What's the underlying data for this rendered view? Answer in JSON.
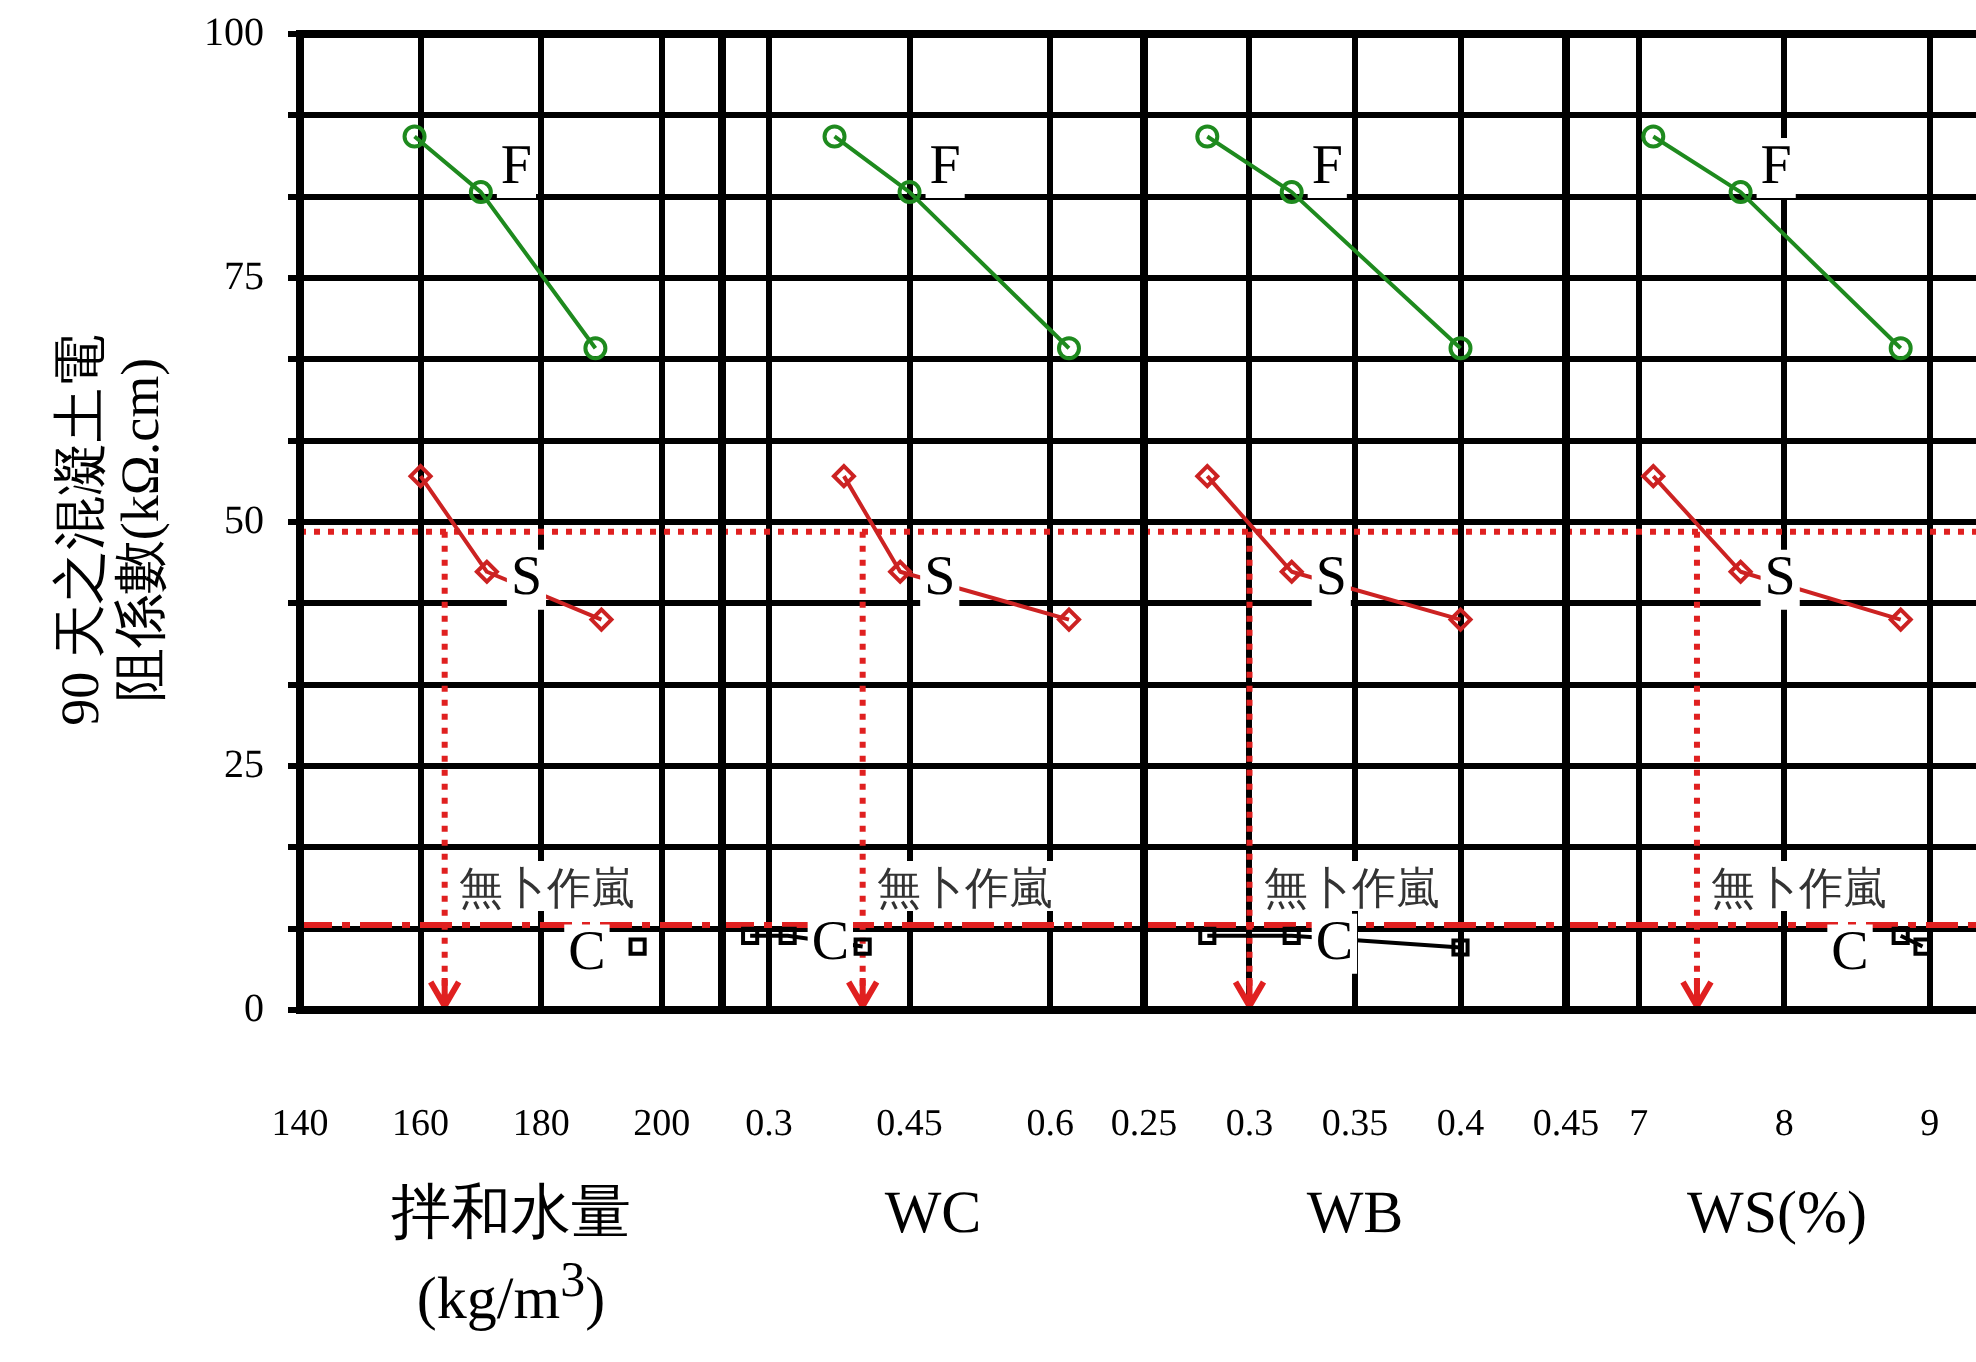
{
  "chart_data": [
    {
      "type": "line",
      "xlabel": "拌和水量\n(kg/m$^{3}$)",
      "ylabel": "90 天之混凝土電阻係數(kΩ.cm)",
      "xlim": [
        140,
        210
      ],
      "xticks": [
        140,
        160,
        180,
        200
      ],
      "ylim": [
        0,
        100
      ],
      "yticks": [
        0,
        {
          "value": 8.33,
          "label": null
        },
        {
          "value": 16.67,
          "label": null
        },
        25,
        {
          "value": 33.33,
          "label": null
        },
        {
          "value": 41.67,
          "label": null
        },
        50,
        {
          "value": 58.33,
          "label": null
        },
        {
          "value": 66.67,
          "label": null
        },
        75,
        {
          "value": 83.33,
          "label": null
        },
        {
          "value": 91.67,
          "label": null
        },
        100
      ],
      "grid": true,
      "series": [
        {
          "name": "F",
          "color": "#1e8a1e",
          "marker": "circle",
          "x": [
            159,
            170,
            189
          ],
          "values": [
            89.5,
            83.8,
            67.8
          ]
        },
        {
          "name": "S",
          "color": "#cc2222",
          "marker": "diamond",
          "x": [
            160,
            171,
            190
          ],
          "values": [
            54.7,
            44.9,
            40
          ]
        },
        {
          "name": "C",
          "color": "#000000",
          "marker": "square",
          "x": [
            196
          ],
          "values": [
            6.5
          ]
        }
      ],
      "ref_lines": [
        {
          "axis": "y",
          "value": 49,
          "color": "#e02020",
          "line_style": "dotted"
        },
        {
          "axis": "y",
          "value": 8.7,
          "label": "無卜作嵐",
          "color": "#e02020",
          "line_style": "dashed"
        },
        {
          "axis": "x",
          "value": 164,
          "color": "#e02020",
          "line_style": "dotted"
        }
      ]
    },
    {
      "type": "line",
      "xlabel": "WC",
      "xlim": [
        0.25,
        0.7
      ],
      "xticks": [
        0.3,
        0.45,
        0.6
      ],
      "ylim": [
        0,
        100
      ],
      "yticks": [
        0,
        {
          "value": 8.33,
          "label": null
        },
        {
          "value": 16.67,
          "label": null
        },
        25,
        {
          "value": 33.33,
          "label": null
        },
        {
          "value": 41.67,
          "label": null
        },
        50,
        {
          "value": 58.33,
          "label": null
        },
        {
          "value": 66.67,
          "label": null
        },
        75,
        {
          "value": 83.33,
          "label": null
        },
        {
          "value": 91.67,
          "label": null
        },
        100
      ],
      "grid": true,
      "tick_labels": "x",
      "series": [
        {
          "name": "F",
          "color": "#1e8a1e",
          "marker": "circle",
          "x": [
            0.37,
            0.45,
            0.62
          ],
          "values": [
            89.5,
            83.8,
            67.8
          ]
        },
        {
          "name": "S",
          "color": "#cc2222",
          "marker": "diamond",
          "x": [
            0.38,
            0.44,
            0.62
          ],
          "values": [
            54.7,
            44.9,
            40
          ]
        },
        {
          "name": "C",
          "color": "#000000",
          "marker": "square",
          "x": [
            0.28,
            0.32,
            0.4
          ],
          "values": [
            7.6,
            7.6,
            6.5
          ]
        }
      ],
      "ref_lines": [
        {
          "axis": "y",
          "value": 49,
          "color": "#e02020",
          "line_style": "dotted"
        },
        {
          "axis": "y",
          "value": 8.7,
          "label": "無卜作嵐",
          "color": "#e02020",
          "line_style": "dashed"
        },
        {
          "axis": "x",
          "value": 0.4,
          "color": "#e02020",
          "line_style": "dotted"
        }
      ]
    },
    {
      "type": "line",
      "xlabel": "WB",
      "xlim": [
        0.25,
        0.45
      ],
      "xticks": [
        0.25,
        0.3,
        0.35,
        0.4,
        0.45
      ],
      "ylim": [
        0,
        100
      ],
      "yticks": [
        0,
        {
          "value": 8.33,
          "label": null
        },
        {
          "value": 16.67,
          "label": null
        },
        25,
        {
          "value": 33.33,
          "label": null
        },
        {
          "value": 41.67,
          "label": null
        },
        50,
        {
          "value": 58.33,
          "label": null
        },
        {
          "value": 66.67,
          "label": null
        },
        75,
        {
          "value": 83.33,
          "label": null
        },
        {
          "value": 91.67,
          "label": null
        },
        100
      ],
      "grid": true,
      "tick_labels": "x",
      "series": [
        {
          "name": "F",
          "color": "#1e8a1e",
          "marker": "circle",
          "x": [
            0.28,
            0.32,
            0.4
          ],
          "values": [
            89.5,
            83.8,
            67.8
          ]
        },
        {
          "name": "S",
          "color": "#cc2222",
          "marker": "diamond",
          "x": [
            0.28,
            0.32,
            0.4
          ],
          "values": [
            54.7,
            44.9,
            40
          ]
        },
        {
          "name": "C",
          "color": "#000000",
          "marker": "square",
          "x": [
            0.28,
            0.32,
            0.4
          ],
          "values": [
            7.6,
            7.6,
            6.4
          ]
        }
      ],
      "ref_lines": [
        {
          "axis": "y",
          "value": 49,
          "color": "#e02020",
          "line_style": "dotted"
        },
        {
          "axis": "y",
          "value": 8.7,
          "label": "無卜作嵐",
          "color": "#e02020",
          "line_style": "dashed"
        },
        {
          "axis": "x",
          "value": 0.3,
          "color": "#e02020",
          "line_style": "dotted"
        }
      ]
    },
    {
      "type": "line",
      "xlabel": "WS(%)",
      "xlim": [
        6.5,
        9.4
      ],
      "xticks": [
        7,
        8,
        9
      ],
      "ylim": [
        0,
        100
      ],
      "yticks": [
        0,
        {
          "value": 8.33,
          "label": null
        },
        {
          "value": 16.67,
          "label": null
        },
        25,
        {
          "value": 33.33,
          "label": null
        },
        {
          "value": 41.67,
          "label": null
        },
        50,
        {
          "value": 58.33,
          "label": null
        },
        {
          "value": 66.67,
          "label": null
        },
        75,
        {
          "value": 83.33,
          "label": null
        },
        {
          "value": 91.67,
          "label": null
        },
        100
      ],
      "grid": true,
      "tick_labels": "x",
      "series": [
        {
          "name": "F",
          "color": "#1e8a1e",
          "marker": "circle",
          "x": [
            7.1,
            7.7,
            8.8
          ],
          "values": [
            89.5,
            83.8,
            67.8
          ]
        },
        {
          "name": "S",
          "color": "#cc2222",
          "marker": "diamond",
          "x": [
            7.1,
            7.7,
            8.8
          ],
          "values": [
            54.7,
            44.9,
            40
          ]
        },
        {
          "name": "C",
          "color": "#000000",
          "marker": "square",
          "x": [
            8.8,
            8.95
          ],
          "values": [
            7.6,
            6.5
          ]
        }
      ],
      "ref_lines": [
        {
          "axis": "y",
          "value": 49,
          "color": "#e02020",
          "line_style": "dotted"
        },
        {
          "axis": "y",
          "value": 8.7,
          "label": "無卜作嵐",
          "color": "#e02020",
          "line_style": "dashed"
        },
        {
          "axis": "x",
          "value": 7.4,
          "color": "#e02020",
          "line_style": "dotted"
        }
      ]
    }
  ]
}
